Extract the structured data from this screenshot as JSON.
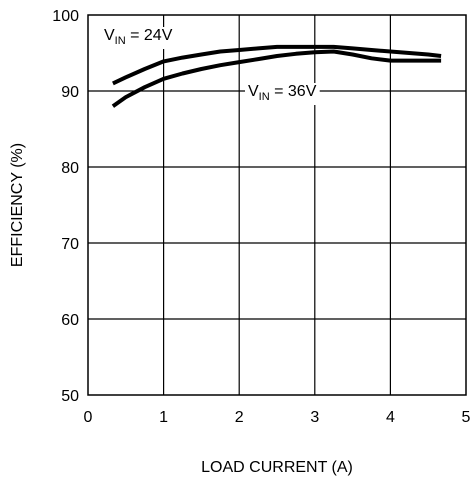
{
  "chart_data": {
    "type": "line",
    "xlabel": "LOAD CURRENT (A)",
    "ylabel": "EFFICIENCY (%)",
    "xlim": [
      0,
      5
    ],
    "ylim": [
      50,
      100
    ],
    "xticks": [
      "0",
      "1",
      "2",
      "3",
      "4",
      "5"
    ],
    "yticks": [
      "50",
      "60",
      "70",
      "80",
      "90",
      "100"
    ],
    "grid": true,
    "series": [
      {
        "name": "VIN = 24V",
        "label_main": "V",
        "label_sub": "IN",
        "label_rest": " = 24V",
        "x": [
          0.33,
          0.5,
          0.75,
          1.0,
          1.25,
          1.5,
          1.75,
          2.0,
          2.25,
          2.5,
          2.75,
          3.0,
          3.25,
          3.5,
          3.75,
          4.0,
          4.25,
          4.5,
          4.67
        ],
        "y": [
          91.0,
          91.8,
          92.9,
          93.9,
          94.4,
          94.8,
          95.2,
          95.4,
          95.6,
          95.8,
          95.8,
          95.8,
          95.8,
          95.6,
          95.4,
          95.2,
          95.0,
          94.8,
          94.6
        ]
      },
      {
        "name": "VIN = 36V",
        "label_main": "V",
        "label_sub": "IN",
        "label_rest": " = 36V",
        "x": [
          0.33,
          0.5,
          0.75,
          1.0,
          1.25,
          1.5,
          1.75,
          2.0,
          2.25,
          2.5,
          2.75,
          3.0,
          3.25,
          3.5,
          3.75,
          4.0,
          4.25,
          4.5,
          4.67
        ],
        "y": [
          88.0,
          89.2,
          90.5,
          91.6,
          92.3,
          92.9,
          93.4,
          93.8,
          94.2,
          94.6,
          94.9,
          95.1,
          95.2,
          94.8,
          94.3,
          94.0,
          94.0,
          94.0,
          94.0
        ]
      }
    ]
  }
}
